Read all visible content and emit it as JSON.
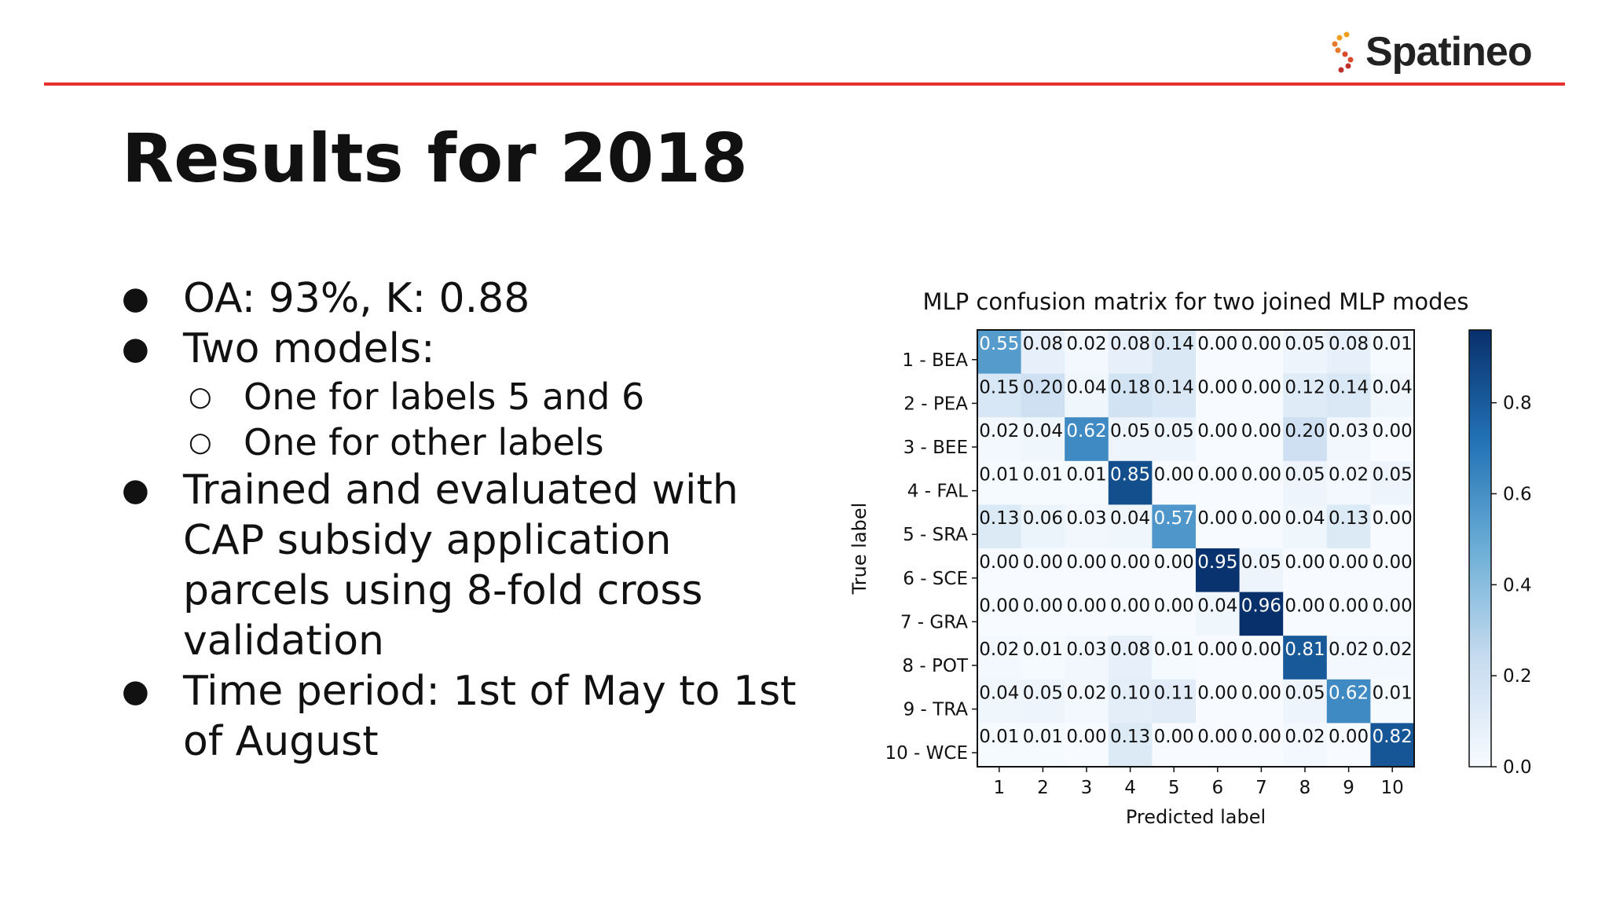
{
  "brand": {
    "name": "Spatineo",
    "dot_colors": [
      "#f0a020",
      "#e8782a",
      "#d84a2a",
      "#c0302a"
    ]
  },
  "colors": {
    "rule": "#e53030",
    "cmap_low": "#f7fbff",
    "cmap_high": "#08306b"
  },
  "slide": {
    "title": "Results for 2018"
  },
  "bullets": {
    "b1": "OA: 93%, K: 0.88",
    "b2": "Two models:",
    "b2a": "One for labels 5 and 6",
    "b2b": "One for other labels",
    "b3_line1": "Trained and evaluated with",
    "b3_line2": "CAP subsidy application",
    "b3_line3": "parcels using 8-fold cross",
    "b3_line4": "validation",
    "b4_line1": "Time period: 1st of May to 1st",
    "b4_line2": "of August"
  },
  "chart_data": {
    "type": "heatmap",
    "title": "MLP confusion matrix for two joined MLP modes",
    "xlabel": "Predicted label",
    "ylabel": "True label",
    "x_tick_labels": [
      "1",
      "2",
      "3",
      "4",
      "5",
      "6",
      "7",
      "8",
      "9",
      "10"
    ],
    "y_tick_labels": [
      "1 - BEA",
      "2 - PEA",
      "3 - BEE",
      "4 - FAL",
      "5 - SRA",
      "6 - SCE",
      "7 - GRA",
      "8 - POT",
      "9 - TRA",
      "10 - WCE"
    ],
    "matrix": [
      [
        0.55,
        0.08,
        0.02,
        0.08,
        0.14,
        0.0,
        0.0,
        0.05,
        0.08,
        0.01
      ],
      [
        0.15,
        0.2,
        0.04,
        0.18,
        0.14,
        0.0,
        0.0,
        0.12,
        0.14,
        0.04
      ],
      [
        0.02,
        0.04,
        0.62,
        0.05,
        0.05,
        0.0,
        0.0,
        0.2,
        0.03,
        0.0
      ],
      [
        0.01,
        0.01,
        0.01,
        0.85,
        0.0,
        0.0,
        0.0,
        0.05,
        0.02,
        0.05
      ],
      [
        0.13,
        0.06,
        0.03,
        0.04,
        0.57,
        0.0,
        0.0,
        0.04,
        0.13,
        0.0
      ],
      [
        0.0,
        0.0,
        0.0,
        0.0,
        0.0,
        0.95,
        0.05,
        0.0,
        0.0,
        0.0
      ],
      [
        0.0,
        0.0,
        0.0,
        0.0,
        0.0,
        0.04,
        0.96,
        0.0,
        0.0,
        0.0
      ],
      [
        0.02,
        0.01,
        0.03,
        0.08,
        0.01,
        0.0,
        0.0,
        0.81,
        0.02,
        0.02
      ],
      [
        0.04,
        0.05,
        0.02,
        0.1,
        0.11,
        0.0,
        0.0,
        0.05,
        0.62,
        0.01
      ],
      [
        0.01,
        0.01,
        0.0,
        0.13,
        0.0,
        0.0,
        0.0,
        0.02,
        0.0,
        0.82
      ]
    ],
    "colorbar": {
      "min": 0.0,
      "max": 0.96,
      "ticks": [
        "0.0",
        "0.2",
        "0.4",
        "0.6",
        "0.8"
      ]
    }
  }
}
